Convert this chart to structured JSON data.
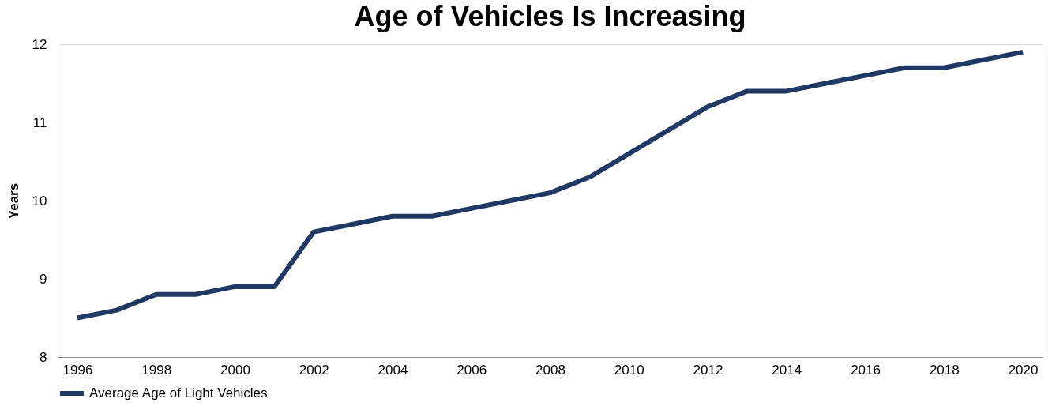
{
  "chart_data": {
    "type": "line",
    "title": "Age of Vehicles Is Increasing",
    "ylabel": "Years",
    "x": [
      1996,
      1997,
      1998,
      1999,
      2000,
      2001,
      2002,
      2003,
      2004,
      2005,
      2006,
      2007,
      2008,
      2009,
      2010,
      2011,
      2012,
      2013,
      2014,
      2015,
      2016,
      2017,
      2018,
      2019,
      2020
    ],
    "series": [
      {
        "name": "Average Age of Light Vehicles",
        "color": "#203864",
        "values": [
          8.5,
          8.6,
          8.8,
          8.8,
          8.9,
          8.9,
          9.6,
          9.7,
          9.8,
          9.8,
          9.9,
          10.0,
          10.1,
          10.3,
          10.6,
          10.9,
          11.2,
          11.4,
          11.4,
          11.5,
          11.6,
          11.7,
          11.7,
          11.8,
          11.9
        ]
      }
    ],
    "xlim": [
      1995.5,
      2020.5
    ],
    "xticks": [
      1996,
      1998,
      2000,
      2002,
      2004,
      2006,
      2008,
      2010,
      2012,
      2014,
      2016,
      2018,
      2020
    ],
    "ylim": [
      8,
      12
    ],
    "yticks": [
      8,
      9,
      10,
      11,
      12
    ],
    "grid": false,
    "legend": "bottom",
    "marker": "none",
    "line_style": "solid"
  }
}
